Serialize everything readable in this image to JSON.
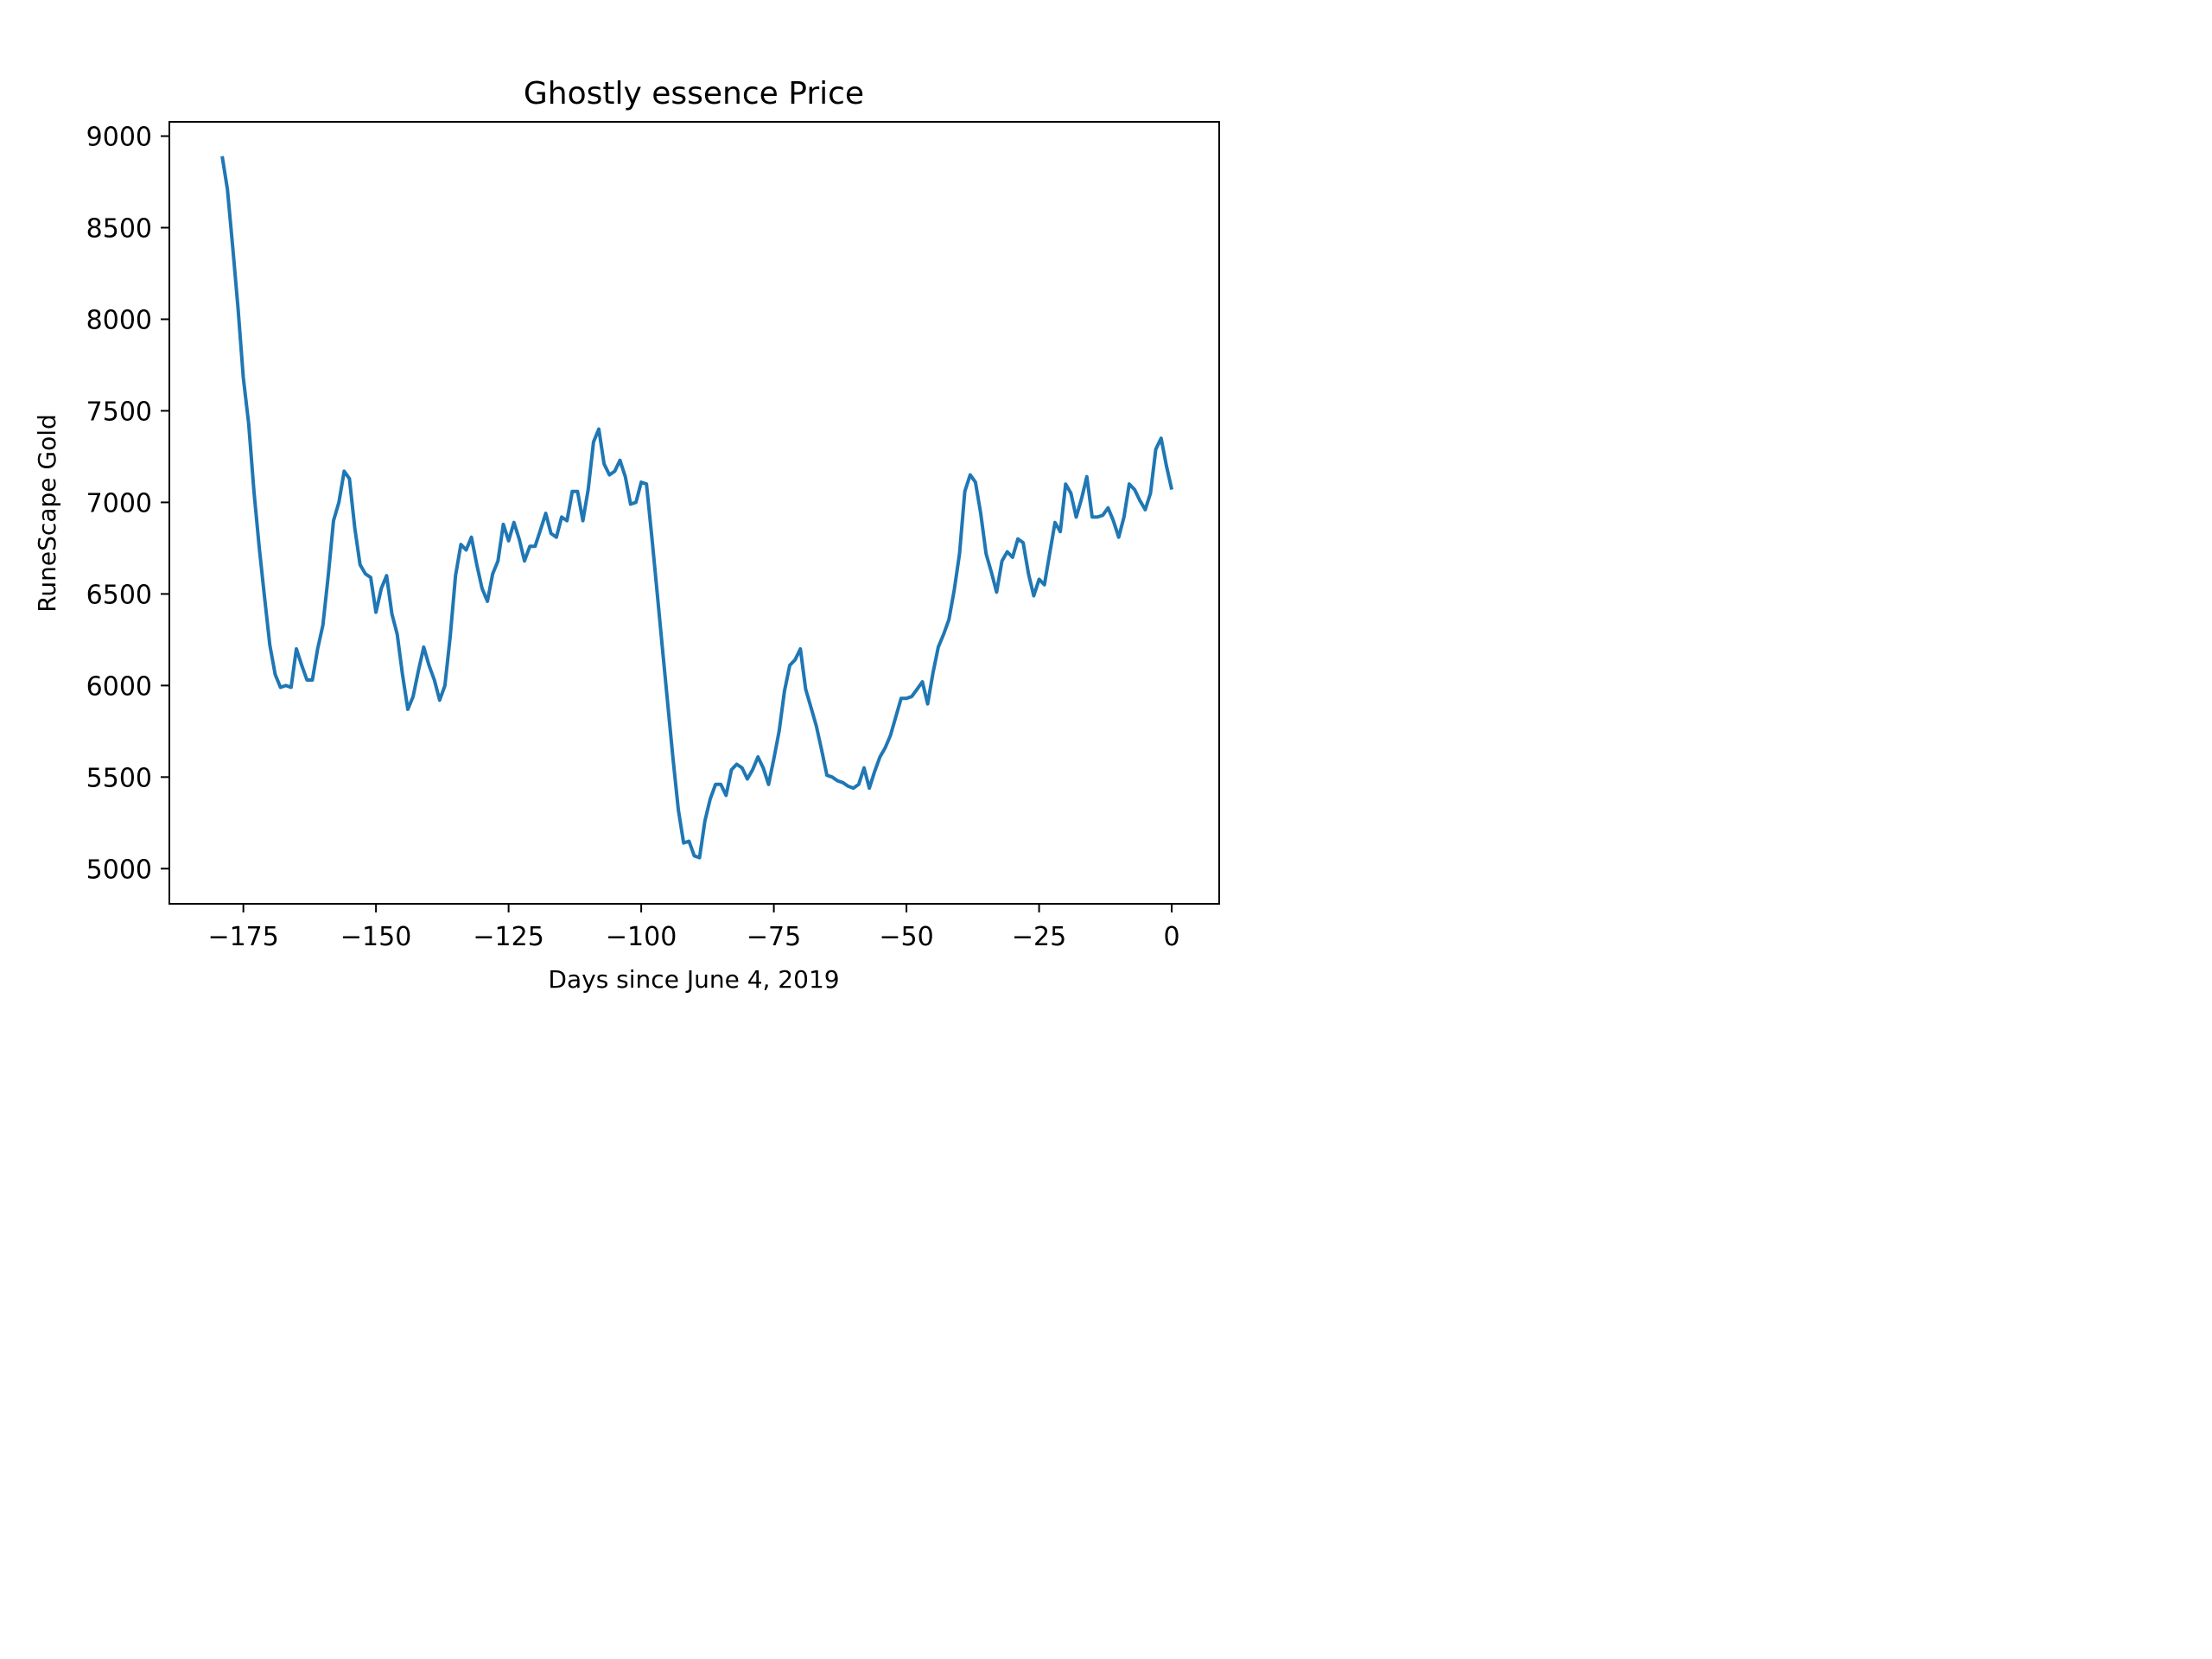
{
  "chart_data": {
    "type": "line",
    "title": "Ghostly essence Price",
    "xlabel": "Days since June 4, 2019",
    "ylabel": "RuneScape Gold",
    "xlim": [
      -188.95,
      8.95
    ],
    "ylim": [
      4808,
      9078
    ],
    "xticks": [
      -175,
      -150,
      -125,
      -100,
      -75,
      -50,
      -25,
      0
    ],
    "xtick_labels": [
      "−175",
      "−150",
      "−125",
      "−100",
      "−75",
      "−50",
      "−25",
      "0"
    ],
    "yticks": [
      5000,
      5500,
      6000,
      6500,
      7000,
      7500,
      8000,
      8500,
      9000
    ],
    "ytick_labels": [
      "5000",
      "5500",
      "6000",
      "6500",
      "7000",
      "7500",
      "8000",
      "8500",
      "9000"
    ],
    "grid": false,
    "legend": false,
    "colors": {
      "line": "#1f77b4",
      "axes": "#000000",
      "background": "#ffffff"
    },
    "series": [
      {
        "x": [
          -179,
          -178,
          -177,
          -176,
          -175,
          -174,
          -173,
          -172,
          -171,
          -170,
          -169,
          -168,
          -167,
          -166,
          -165,
          -164,
          -163,
          -162,
          -161,
          -160,
          -159,
          -158,
          -157,
          -156,
          -155,
          -154,
          -153,
          -152,
          -151,
          -150,
          -149,
          -148,
          -147,
          -146,
          -145,
          -144,
          -143,
          -142,
          -141,
          -140,
          -139,
          -138,
          -137,
          -136,
          -135,
          -134,
          -133,
          -132,
          -131,
          -130,
          -129,
          -128,
          -127,
          -126,
          -125,
          -124,
          -123,
          -122,
          -121,
          -120,
          -119,
          -118,
          -117,
          -116,
          -115,
          -114,
          -113,
          -112,
          -111,
          -110,
          -109,
          -108,
          -107,
          -106,
          -105,
          -104,
          -103,
          -102,
          -101,
          -100,
          -99,
          -98,
          -97,
          -96,
          -95,
          -94,
          -93,
          -92,
          -91,
          -90,
          -89,
          -88,
          -87,
          -86,
          -85,
          -84,
          -83,
          -82,
          -81,
          -80,
          -79,
          -78,
          -77,
          -76,
          -75,
          -74,
          -73,
          -72,
          -71,
          -70,
          -69,
          -68,
          -67,
          -66,
          -65,
          -64,
          -63,
          -62,
          -61,
          -60,
          -59,
          -58,
          -57,
          -56,
          -55,
          -54,
          -53,
          -52,
          -51,
          -50,
          -49,
          -48,
          -47,
          -46,
          -45,
          -44,
          -43,
          -42,
          -41,
          -40,
          -39,
          -38,
          -37,
          -36,
          -35,
          -34,
          -33,
          -32,
          -31,
          -30,
          -29,
          -28,
          -27,
          -26,
          -25,
          -24,
          -23,
          -22,
          -21,
          -20,
          -19,
          -18,
          -17,
          -16,
          -15,
          -14,
          -13,
          -12,
          -11,
          -10,
          -9,
          -8,
          -7,
          -6,
          -5,
          -4,
          -3,
          -2,
          -1,
          0
        ],
        "y": [
          8890,
          8710,
          8390,
          8060,
          7680,
          7430,
          7060,
          6750,
          6480,
          6220,
          6060,
          5990,
          6000,
          5990,
          6200,
          6110,
          6030,
          6030,
          6200,
          6330,
          6600,
          6900,
          7000,
          7170,
          7130,
          6860,
          6660,
          6610,
          6590,
          6400,
          6530,
          6600,
          6390,
          6280,
          6060,
          5870,
          5940,
          6080,
          6210,
          6110,
          6030,
          5920,
          6000,
          6270,
          6600,
          6770,
          6740,
          6810,
          6660,
          6530,
          6460,
          6610,
          6680,
          6880,
          6790,
          6890,
          6800,
          6680,
          6760,
          6760,
          6850,
          6940,
          6830,
          6810,
          6920,
          6900,
          7060,
          7060,
          6900,
          7070,
          7330,
          7400,
          7210,
          7150,
          7170,
          7230,
          7140,
          6990,
          7000,
          7110,
          7100,
          6810,
          6510,
          6200,
          5900,
          5600,
          5320,
          5140,
          5150,
          5070,
          5060,
          5260,
          5380,
          5460,
          5460,
          5400,
          5540,
          5570,
          5550,
          5490,
          5540,
          5610,
          5550,
          5460,
          5600,
          5750,
          5970,
          6110,
          6140,
          6200,
          5980,
          5880,
          5780,
          5650,
          5510,
          5500,
          5480,
          5470,
          5450,
          5440,
          5460,
          5550,
          5440,
          5530,
          5610,
          5660,
          5730,
          5830,
          5930,
          5930,
          5940,
          5980,
          6020,
          5900,
          6070,
          6210,
          6280,
          6360,
          6520,
          6720,
          7060,
          7150,
          7110,
          6940,
          6720,
          6620,
          6510,
          6680,
          6730,
          6700,
          6800,
          6780,
          6610,
          6490,
          6580,
          6550,
          6720,
          6890,
          6840,
          7100,
          7050,
          6920,
          7020,
          7140,
          6920,
          6920,
          6930,
          6970,
          6900,
          6810,
          6920,
          7100,
          7070,
          7010,
          6960,
          7050,
          7290,
          7350,
          7200,
          7070
        ]
      }
    ]
  }
}
